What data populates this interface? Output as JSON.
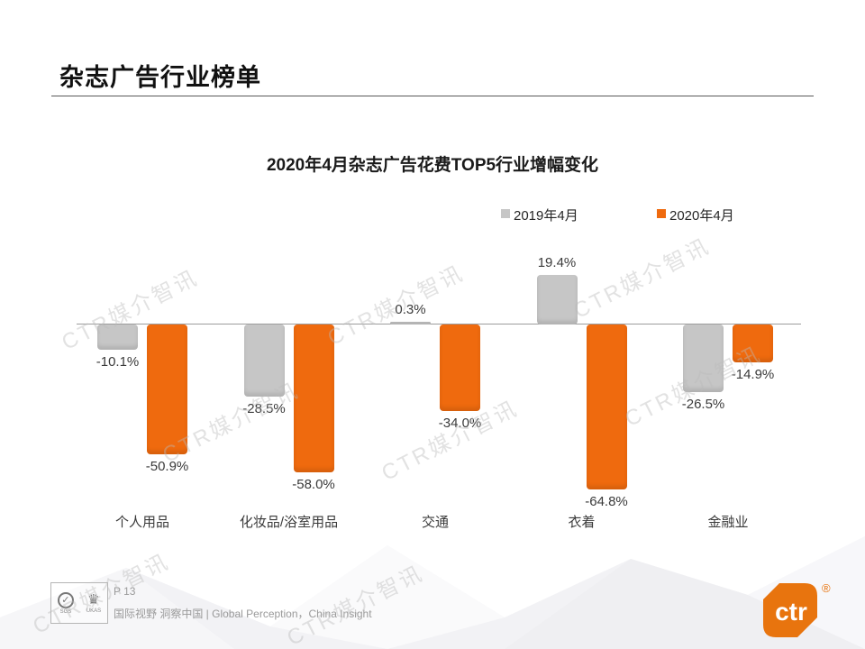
{
  "page": {
    "title": "杂志广告行业榜单"
  },
  "chart_data": {
    "type": "bar",
    "title": "2020年4月杂志广告花费TOP5行业增幅变化",
    "categories": [
      "个人用品",
      "化妆品/浴室用品",
      "交通",
      "衣着",
      "金融业"
    ],
    "series": [
      {
        "name": "2019年4月",
        "color": "#C6C6C6",
        "values": [
          -10.1,
          -28.5,
          0.3,
          19.4,
          -26.5
        ]
      },
      {
        "name": "2020年4月",
        "color": "#EF6A0E",
        "values": [
          -50.9,
          -58.0,
          -34.0,
          -64.8,
          -14.9
        ]
      }
    ],
    "value_unit": "%",
    "value_labels_visible": true,
    "ylim": [
      -70,
      25
    ],
    "grid": false,
    "legend_position": "top-right",
    "baseline_value": 0
  },
  "watermark": {
    "text": "CTR媒介智讯"
  },
  "footer": {
    "page_label": "P 13",
    "tagline": "国际视野 洞察中国 |  Global Perception，China Insight",
    "cert_left_label": "SGS",
    "cert_left_glyph": "✓",
    "cert_right_label": "UKAS",
    "cert_right_glyph": "♛",
    "logo_text": "ctr",
    "registered_mark": "®"
  },
  "colors": {
    "accent_orange": "#EF6A0E",
    "bar_gray": "#C6C6C6",
    "logo_orange": "#E8740E",
    "baseline_gray": "#9C9C9C",
    "text_dark": "#1A1A1A",
    "footer_gray": "#9A9A9A"
  }
}
